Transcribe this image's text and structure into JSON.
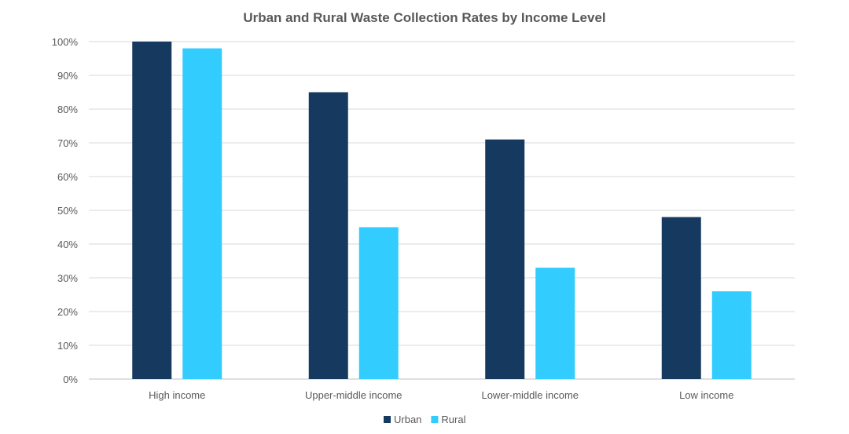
{
  "chart_data": {
    "type": "bar",
    "title": "Urban and Rural Waste Collection Rates by Income Level",
    "xlabel": "",
    "ylabel": "",
    "categories": [
      "High income",
      "Upper-middle income",
      "Lower-middle income",
      "Low income"
    ],
    "series": [
      {
        "name": "Urban",
        "values": [
          100,
          85,
          71,
          48
        ],
        "color": "#163A5F"
      },
      {
        "name": "Rural",
        "values": [
          98,
          45,
          33,
          26
        ],
        "color": "#33CCFF"
      }
    ],
    "ylim": [
      0,
      100
    ],
    "yticks": [
      "0%",
      "10%",
      "20%",
      "30%",
      "40%",
      "50%",
      "60%",
      "70%",
      "80%",
      "90%",
      "100%"
    ],
    "grid": true,
    "legend": "bottom"
  }
}
